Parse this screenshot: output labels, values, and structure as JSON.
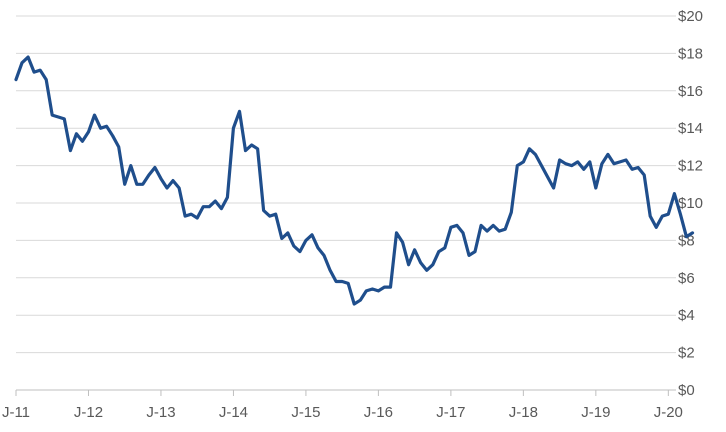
{
  "chart_data": {
    "type": "line",
    "title": "",
    "xlabel": "",
    "ylabel": "",
    "grid": "horizontal",
    "legend": "none",
    "ylim": [
      0,
      20
    ],
    "y_axis_position": "right",
    "colors": {
      "series": "#1f4e8c",
      "grid": "#d9d9d9",
      "text": "#595959"
    },
    "x_ticks": [
      {
        "x": "2011-01",
        "label": "J-11"
      },
      {
        "x": "2012-01",
        "label": "J-12"
      },
      {
        "x": "2013-01",
        "label": "J-13"
      },
      {
        "x": "2014-01",
        "label": "J-14"
      },
      {
        "x": "2015-01",
        "label": "J-15"
      },
      {
        "x": "2016-01",
        "label": "J-16"
      },
      {
        "x": "2017-01",
        "label": "J-17"
      },
      {
        "x": "2018-01",
        "label": "J-18"
      },
      {
        "x": "2019-01",
        "label": "J-19"
      },
      {
        "x": "2020-01",
        "label": "J-20"
      }
    ],
    "y_ticks": [
      {
        "y": 0,
        "label": "$0"
      },
      {
        "y": 2,
        "label": "$2"
      },
      {
        "y": 4,
        "label": "$4"
      },
      {
        "y": 6,
        "label": "$6"
      },
      {
        "y": 8,
        "label": "$8"
      },
      {
        "y": 10,
        "label": "$10"
      },
      {
        "y": 12,
        "label": "$12"
      },
      {
        "y": 14,
        "label": "$14"
      },
      {
        "y": 16,
        "label": "$16"
      },
      {
        "y": 18,
        "label": "$18"
      },
      {
        "y": 20,
        "label": "$20"
      }
    ],
    "series": [
      {
        "points": [
          [
            "2011-01",
            16.6
          ],
          [
            "2011-02",
            17.5
          ],
          [
            "2011-03",
            17.8
          ],
          [
            "2011-04",
            17.0
          ],
          [
            "2011-05",
            17.1
          ],
          [
            "2011-06",
            16.6
          ],
          [
            "2011-07",
            14.7
          ],
          [
            "2011-08",
            14.6
          ],
          [
            "2011-09",
            14.5
          ],
          [
            "2011-10",
            12.8
          ],
          [
            "2011-11",
            13.7
          ],
          [
            "2011-12",
            13.3
          ],
          [
            "2012-01",
            13.8
          ],
          [
            "2012-02",
            14.7
          ],
          [
            "2012-03",
            14.0
          ],
          [
            "2012-04",
            14.1
          ],
          [
            "2012-05",
            13.6
          ],
          [
            "2012-06",
            13.0
          ],
          [
            "2012-07",
            11.0
          ],
          [
            "2012-08",
            12.0
          ],
          [
            "2012-09",
            11.0
          ],
          [
            "2012-10",
            11.0
          ],
          [
            "2012-11",
            11.5
          ],
          [
            "2012-12",
            11.9
          ],
          [
            "2013-01",
            11.3
          ],
          [
            "2013-02",
            10.8
          ],
          [
            "2013-03",
            11.2
          ],
          [
            "2013-04",
            10.8
          ],
          [
            "2013-05",
            9.3
          ],
          [
            "2013-06",
            9.4
          ],
          [
            "2013-07",
            9.2
          ],
          [
            "2013-08",
            9.8
          ],
          [
            "2013-09",
            9.8
          ],
          [
            "2013-10",
            10.1
          ],
          [
            "2013-11",
            9.7
          ],
          [
            "2013-12",
            10.3
          ],
          [
            "2014-01",
            14.0
          ],
          [
            "2014-02",
            14.9
          ],
          [
            "2014-03",
            12.8
          ],
          [
            "2014-04",
            13.1
          ],
          [
            "2014-05",
            12.9
          ],
          [
            "2014-06",
            9.6
          ],
          [
            "2014-07",
            9.3
          ],
          [
            "2014-08",
            9.4
          ],
          [
            "2014-09",
            8.1
          ],
          [
            "2014-10",
            8.4
          ],
          [
            "2014-11",
            7.7
          ],
          [
            "2014-12",
            7.4
          ],
          [
            "2015-01",
            8.0
          ],
          [
            "2015-02",
            8.3
          ],
          [
            "2015-03",
            7.6
          ],
          [
            "2015-04",
            7.2
          ],
          [
            "2015-05",
            6.4
          ],
          [
            "2015-06",
            5.8
          ],
          [
            "2015-07",
            5.8
          ],
          [
            "2015-08",
            5.7
          ],
          [
            "2015-09",
            4.6
          ],
          [
            "2015-10",
            4.8
          ],
          [
            "2015-11",
            5.3
          ],
          [
            "2015-12",
            5.4
          ],
          [
            "2016-01",
            5.3
          ],
          [
            "2016-02",
            5.5
          ],
          [
            "2016-03",
            5.5
          ],
          [
            "2016-04",
            8.4
          ],
          [
            "2016-05",
            7.9
          ],
          [
            "2016-06",
            6.7
          ],
          [
            "2016-07",
            7.5
          ],
          [
            "2016-08",
            6.8
          ],
          [
            "2016-09",
            6.4
          ],
          [
            "2016-10",
            6.7
          ],
          [
            "2016-11",
            7.4
          ],
          [
            "2016-12",
            7.6
          ],
          [
            "2017-01",
            8.7
          ],
          [
            "2017-02",
            8.8
          ],
          [
            "2017-03",
            8.4
          ],
          [
            "2017-04",
            7.2
          ],
          [
            "2017-05",
            7.4
          ],
          [
            "2017-06",
            8.8
          ],
          [
            "2017-07",
            8.5
          ],
          [
            "2017-08",
            8.8
          ],
          [
            "2017-09",
            8.5
          ],
          [
            "2017-10",
            8.6
          ],
          [
            "2017-11",
            9.5
          ],
          [
            "2017-12",
            12.0
          ],
          [
            "2018-01",
            12.2
          ],
          [
            "2018-02",
            12.9
          ],
          [
            "2018-03",
            12.6
          ],
          [
            "2018-04",
            12.0
          ],
          [
            "2018-05",
            11.4
          ],
          [
            "2018-06",
            10.8
          ],
          [
            "2018-07",
            12.3
          ],
          [
            "2018-08",
            12.1
          ],
          [
            "2018-09",
            12.0
          ],
          [
            "2018-10",
            12.2
          ],
          [
            "2018-11",
            11.8
          ],
          [
            "2018-12",
            12.2
          ],
          [
            "2019-01",
            10.8
          ],
          [
            "2019-02",
            12.1
          ],
          [
            "2019-03",
            12.6
          ],
          [
            "2019-04",
            12.1
          ],
          [
            "2019-05",
            12.2
          ],
          [
            "2019-06",
            12.3
          ],
          [
            "2019-07",
            11.8
          ],
          [
            "2019-08",
            11.9
          ],
          [
            "2019-09",
            11.5
          ],
          [
            "2019-10",
            9.3
          ],
          [
            "2019-11",
            8.7
          ],
          [
            "2019-12",
            9.3
          ],
          [
            "2020-01",
            9.4
          ],
          [
            "2020-02",
            10.5
          ],
          [
            "2020-03",
            9.4
          ],
          [
            "2020-04",
            8.2
          ],
          [
            "2020-05",
            8.4
          ]
        ]
      }
    ]
  }
}
